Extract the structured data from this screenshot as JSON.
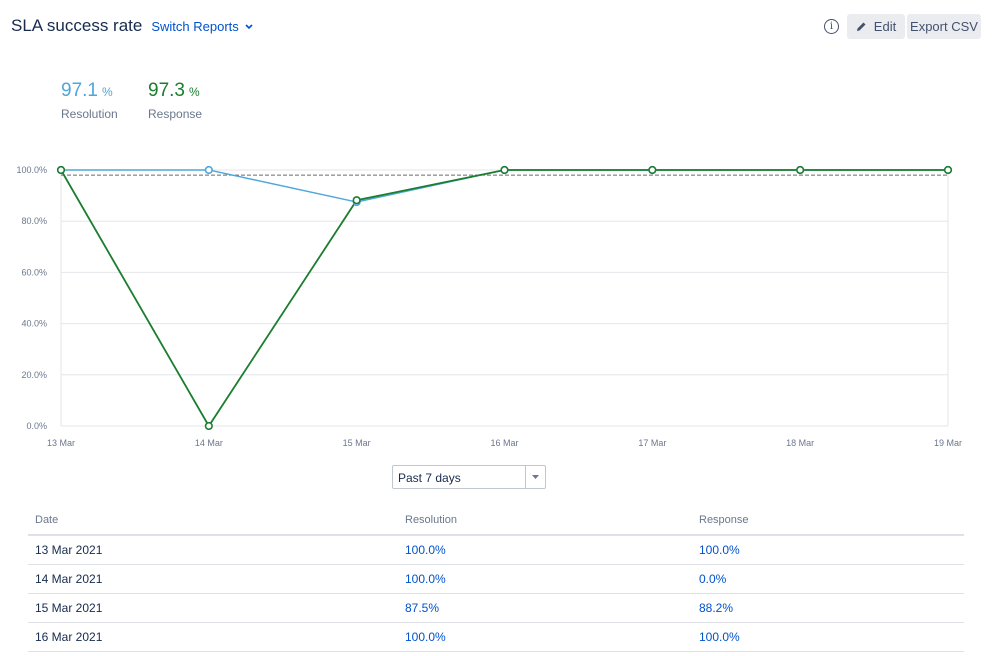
{
  "header": {
    "title": "SLA success rate",
    "switch_label": "Switch Reports",
    "info_glyph": "i",
    "edit_label": "Edit",
    "export_label": "Export CSV"
  },
  "metrics": {
    "resolution": {
      "value": "97.1",
      "unit": "%",
      "label": "Resolution"
    },
    "response": {
      "value": "97.3",
      "unit": "%",
      "label": "Response"
    }
  },
  "colors": {
    "resolution": "#4ea6dc",
    "response": "#1b7d2f",
    "grid": "#e4e6ea",
    "target": "#6b6b6b"
  },
  "chart_data": {
    "type": "line",
    "categories": [
      "13 Mar",
      "14 Mar",
      "15 Mar",
      "16 Mar",
      "17 Mar",
      "18 Mar",
      "19 Mar"
    ],
    "series": [
      {
        "name": "Resolution",
        "values": [
          100,
          100,
          87.5,
          100,
          100,
          100,
          100
        ]
      },
      {
        "name": "Response",
        "values": [
          100,
          0,
          88.2,
          100,
          100,
          100,
          100
        ]
      }
    ],
    "ylim": [
      0,
      100
    ],
    "yticks": [
      0,
      20,
      40,
      60,
      80,
      100
    ],
    "ytick_labels": [
      "0.0%",
      "20.0%",
      "40.0%",
      "60.0%",
      "80.0%",
      "100.0%"
    ],
    "target": 98,
    "grid": true
  },
  "period": {
    "selected": "Past 7 days"
  },
  "table": {
    "headers": [
      "Date",
      "Resolution",
      "Response"
    ],
    "rows": [
      [
        "13 Mar 2021",
        "100.0%",
        "100.0%"
      ],
      [
        "14 Mar 2021",
        "100.0%",
        "0.0%"
      ],
      [
        "15 Mar 2021",
        "87.5%",
        "88.2%"
      ],
      [
        "16 Mar 2021",
        "100.0%",
        "100.0%"
      ]
    ]
  }
}
